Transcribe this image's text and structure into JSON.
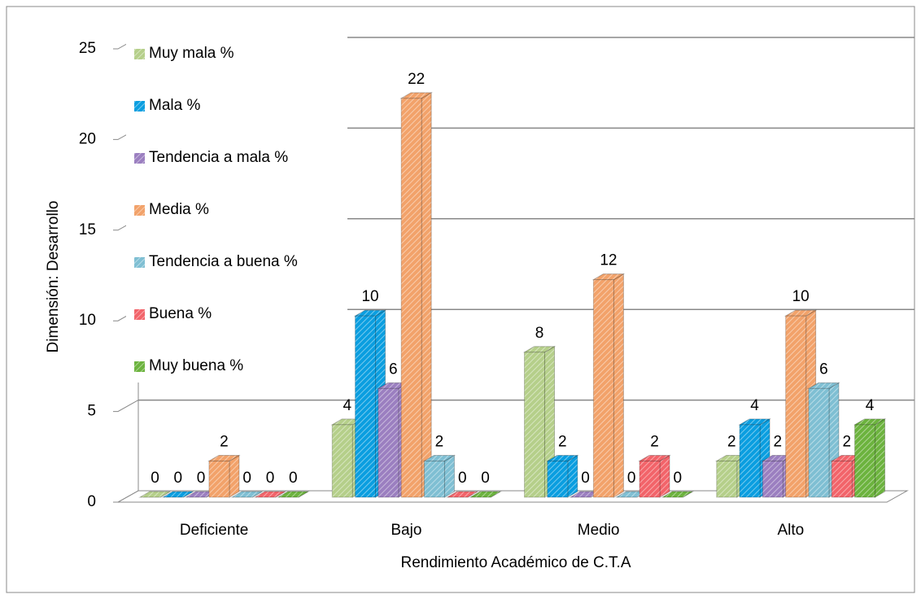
{
  "chart_data": {
    "type": "bar3d",
    "x_label": "Rendimiento Académico de C.T.A",
    "y_label": "Dimensión: Desarrollo",
    "categories": [
      "Deficiente",
      "Bajo",
      "Medio",
      "Alto"
    ],
    "series": [
      {
        "name": "Muy mala %",
        "color": "#b5cf8a",
        "values": [
          0,
          4,
          8,
          2
        ]
      },
      {
        "name": "Mala %",
        "color": "#0a9ee0",
        "values": [
          0,
          10,
          2,
          4
        ]
      },
      {
        "name": "Tendencia a mala %",
        "color": "#9b7fc0",
        "values": [
          0,
          6,
          0,
          2
        ]
      },
      {
        "name": "Media %",
        "color": "#f2a26a",
        "values": [
          2,
          22,
          12,
          10
        ]
      },
      {
        "name": "Tendencia a buena %",
        "color": "#7fbfd3",
        "values": [
          0,
          2,
          0,
          6
        ]
      },
      {
        "name": "Buena %",
        "color": "#f2646a",
        "values": [
          0,
          0,
          2,
          2
        ]
      },
      {
        "name": "Muy buena %",
        "color": "#6cb33e",
        "values": [
          0,
          0,
          0,
          4
        ]
      }
    ],
    "ylim": [
      0,
      25
    ],
    "yticks": [
      0,
      5,
      10,
      15,
      20,
      25
    ],
    "grid": true,
    "legend": "left"
  }
}
